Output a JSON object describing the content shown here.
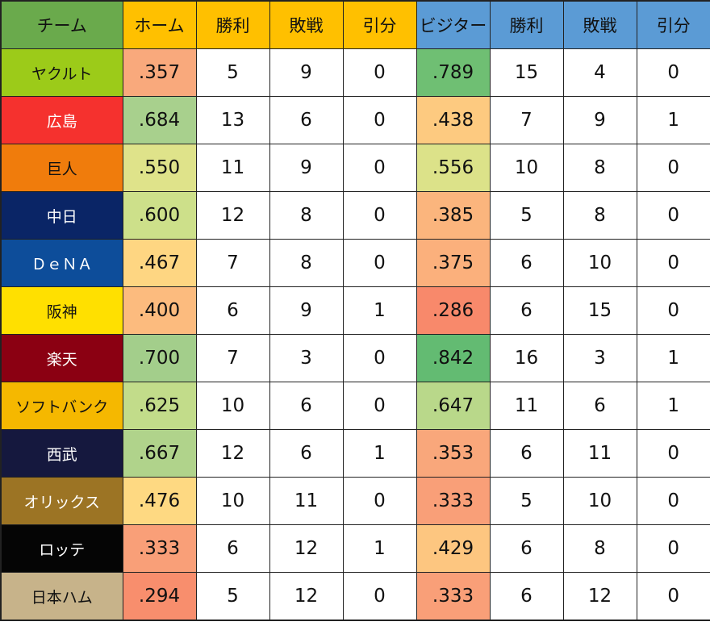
{
  "chart_data": {
    "type": "table",
    "columns": [
      {
        "label": "チーム",
        "bg": "#6aaa4c"
      },
      {
        "label": "ホーム",
        "bg": "#ffc000"
      },
      {
        "label": "勝利",
        "bg": "#ffc000"
      },
      {
        "label": "敗戦",
        "bg": "#ffc000"
      },
      {
        "label": "引分",
        "bg": "#ffc000"
      },
      {
        "label": "ビジター",
        "bg": "#5b9bd5"
      },
      {
        "label": "勝利",
        "bg": "#5b9bd5"
      },
      {
        "label": "敗戦",
        "bg": "#5b9bd5"
      },
      {
        "label": "引分",
        "bg": "#5b9bd5"
      }
    ],
    "rows": [
      {
        "team": "ヤクルト",
        "team_bg": "#9ccb19",
        "team_fg": "#111111",
        "home_pct": ".357",
        "home_pct_bg": "#f9a97c",
        "home_w": "5",
        "home_l": "9",
        "home_d": "0",
        "visitor_pct": ".789",
        "visitor_pct_bg": "#6fbf73",
        "visitor_w": "15",
        "visitor_l": "4",
        "visitor_d": "0"
      },
      {
        "team": "広島",
        "team_bg": "#f5312e",
        "team_fg": "#ffffff",
        "home_pct": ".684",
        "home_pct_bg": "#a8d08d",
        "home_w": "13",
        "home_l": "6",
        "home_d": "0",
        "visitor_pct": ".438",
        "visitor_pct_bg": "#fdca80",
        "visitor_w": "7",
        "visitor_l": "9",
        "visitor_d": "1"
      },
      {
        "team": "巨人",
        "team_bg": "#f07c0c",
        "team_fg": "#111111",
        "home_pct": ".550",
        "home_pct_bg": "#dfe38a",
        "home_w": "11",
        "home_l": "9",
        "home_d": "0",
        "visitor_pct": ".556",
        "visitor_pct_bg": "#dce289",
        "visitor_w": "10",
        "visitor_l": "8",
        "visitor_d": "0"
      },
      {
        "team": "中日",
        "team_bg": "#0a2566",
        "team_fg": "#ffffff",
        "home_pct": ".600",
        "home_pct_bg": "#cde08a",
        "home_w": "12",
        "home_l": "8",
        "home_d": "0",
        "visitor_pct": ".385",
        "visitor_pct_bg": "#fbb57d",
        "visitor_w": "5",
        "visitor_l": "8",
        "visitor_d": "0"
      },
      {
        "team": "ＤｅＮＡ",
        "team_bg": "#0d4d9a",
        "team_fg": "#ffffff",
        "home_pct": ".467",
        "home_pct_bg": "#fed682",
        "home_w": "7",
        "home_l": "8",
        "home_d": "0",
        "visitor_pct": ".375",
        "visitor_pct_bg": "#fbb07c",
        "visitor_w": "6",
        "visitor_l": "10",
        "visitor_d": "0"
      },
      {
        "team": "阪神",
        "team_bg": "#ffe000",
        "team_fg": "#111111",
        "home_pct": ".400",
        "home_pct_bg": "#fcbb7e",
        "home_w": "6",
        "home_l": "9",
        "home_d": "1",
        "visitor_pct": ".286",
        "visitor_pct_bg": "#f8896b",
        "visitor_w": "6",
        "visitor_l": "15",
        "visitor_d": "0"
      },
      {
        "team": "楽天",
        "team_bg": "#8b0012",
        "team_fg": "#ffffff",
        "home_pct": ".700",
        "home_pct_bg": "#a3ce8b",
        "home_w": "7",
        "home_l": "3",
        "home_d": "0",
        "visitor_pct": ".842",
        "visitor_pct_bg": "#63bb72",
        "visitor_w": "16",
        "visitor_l": "3",
        "visitor_d": "1"
      },
      {
        "team": "ソフトバンク",
        "team_bg": "#f5b800",
        "team_fg": "#111111",
        "home_pct": ".625",
        "home_pct_bg": "#c2dc8a",
        "home_w": "10",
        "home_l": "6",
        "home_d": "0",
        "visitor_pct": ".647",
        "visitor_pct_bg": "#b9d88a",
        "visitor_w": "11",
        "visitor_l": "6",
        "visitor_d": "1"
      },
      {
        "team": "西武",
        "team_bg": "#15183e",
        "team_fg": "#ffffff",
        "home_pct": ".667",
        "home_pct_bg": "#b0d38b",
        "home_w": "12",
        "home_l": "6",
        "home_d": "1",
        "visitor_pct": ".353",
        "visitor_pct_bg": "#f9a77b",
        "visitor_w": "6",
        "visitor_l": "11",
        "visitor_d": "0"
      },
      {
        "team": "オリックス",
        "team_bg": "#9c7424",
        "team_fg": "#ffffff",
        "home_pct": ".476",
        "home_pct_bg": "#fed982",
        "home_w": "10",
        "home_l": "11",
        "home_d": "0",
        "visitor_pct": ".333",
        "visitor_pct_bg": "#f99f78",
        "visitor_w": "5",
        "visitor_l": "10",
        "visitor_d": "0"
      },
      {
        "team": "ロッテ",
        "team_bg": "#050505",
        "team_fg": "#ffffff",
        "home_pct": ".333",
        "home_pct_bg": "#f99f78",
        "home_w": "6",
        "home_l": "12",
        "home_d": "1",
        "visitor_pct": ".429",
        "visitor_pct_bg": "#fdc680",
        "visitor_w": "6",
        "visitor_l": "8",
        "visitor_d": "0"
      },
      {
        "team": "日本ハム",
        "team_bg": "#c7b38a",
        "team_fg": "#111111",
        "home_pct": ".294",
        "home_pct_bg": "#f88e6d",
        "home_w": "5",
        "home_l": "12",
        "home_d": "0",
        "visitor_pct": ".333",
        "visitor_pct_bg": "#f99f78",
        "visitor_w": "6",
        "visitor_l": "12",
        "visitor_d": "0"
      }
    ]
  }
}
